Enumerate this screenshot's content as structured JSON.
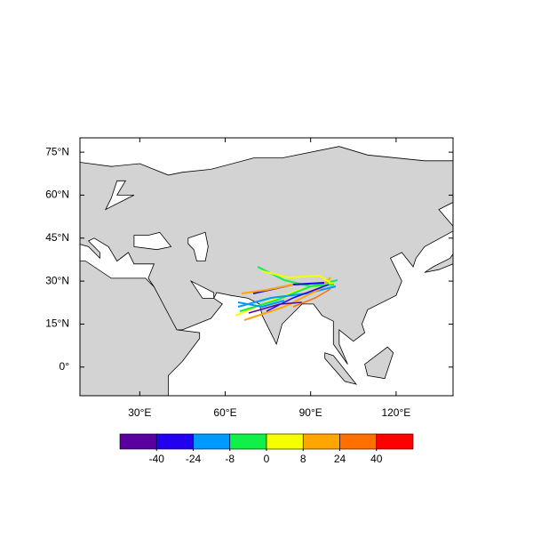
{
  "map": {
    "xlim": [
      9,
      140
    ],
    "ylim": [
      -10,
      80
    ],
    "xticks": [
      {
        "value": 30,
        "label": "30°E"
      },
      {
        "value": 60,
        "label": "60°E"
      },
      {
        "value": 90,
        "label": "90°E"
      },
      {
        "value": 120,
        "label": "120°E"
      }
    ],
    "yticks": [
      {
        "value": 0,
        "label": "0°"
      },
      {
        "value": 15,
        "label": "15°N"
      },
      {
        "value": 30,
        "label": "30°N"
      },
      {
        "value": 45,
        "label": "45°N"
      },
      {
        "value": 60,
        "label": "60°N"
      },
      {
        "value": 75,
        "label": "75°N"
      }
    ],
    "colorbar": {
      "colors": [
        "#5a009e",
        "#2200f0",
        "#0099ff",
        "#10f048",
        "#f5ff00",
        "#ffa500",
        "#ff7000",
        "#ff0000"
      ],
      "ticks": [
        -40,
        -24,
        -8,
        0,
        8,
        24,
        40
      ]
    }
  }
}
